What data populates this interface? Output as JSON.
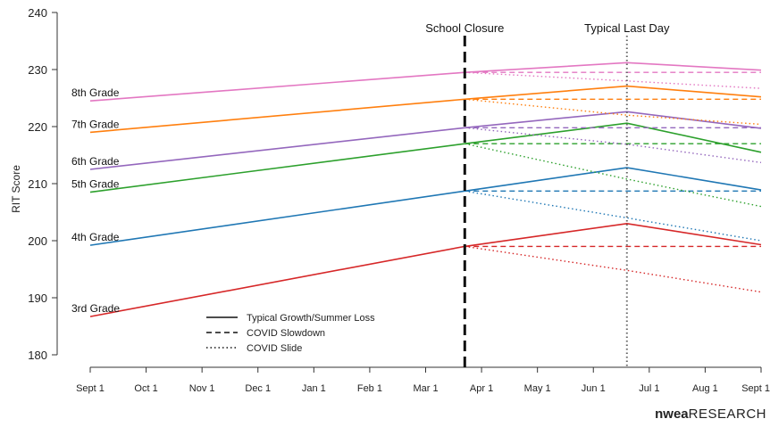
{
  "chart_data": {
    "type": "line",
    "ylabel": "RIT Score",
    "ylim": [
      180,
      240
    ],
    "yticks": [
      180,
      190,
      200,
      210,
      220,
      230,
      240
    ],
    "xticks": [
      "Sept 1",
      "Oct 1",
      "Nov 1",
      "Dec 1",
      "Jan 1",
      "Feb 1",
      "Mar 1",
      "Apr 1",
      "May 1",
      "Jun 1",
      "Jul 1",
      "Aug 1",
      "Sept 1"
    ],
    "events": [
      {
        "label": "School Closure",
        "month": 6.7,
        "style": "dashed",
        "color": "#111111"
      },
      {
        "label": "Typical Last Day",
        "month": 9.6,
        "style": "dotted",
        "color": "#666666"
      }
    ],
    "legend": [
      {
        "label": "Typical Growth/Summer Loss",
        "style": "solid"
      },
      {
        "label": "COVID Slowdown",
        "style": "dashed"
      },
      {
        "label": "COVID Slide",
        "style": "dotted"
      }
    ],
    "series": [
      {
        "name": "3rd Grade",
        "color": "#d62728",
        "start": 186.7,
        "closure": 199.0,
        "peak": 203.0,
        "end_typical": 199.3,
        "end_slowdown": 199.0,
        "slide_lastday": 194.8,
        "slide_end": 191.0
      },
      {
        "name": "4th Grade",
        "color": "#1f77b4",
        "start": 199.2,
        "closure": 208.7,
        "peak": 212.8,
        "end_typical": 208.9,
        "end_slowdown": 208.7,
        "slide_lastday": 204.0,
        "slide_end": 200.0
      },
      {
        "name": "5th Grade",
        "color": "#2ca02c",
        "start": 208.5,
        "closure": 217.0,
        "peak": 220.6,
        "end_typical": 215.5,
        "end_slowdown": 217.0,
        "slide_lastday": 210.8,
        "slide_end": 206.0
      },
      {
        "name": "6th Grade",
        "color": "#9467bd",
        "start": 212.5,
        "closure": 219.8,
        "peak": 222.6,
        "end_typical": 219.7,
        "end_slowdown": 219.8,
        "slide_lastday": 216.9,
        "slide_end": 213.7
      },
      {
        "name": "7th Grade",
        "color": "#ff7f0e",
        "start": 219.0,
        "closure": 224.8,
        "peak": 227.1,
        "end_typical": 225.2,
        "end_slowdown": 224.8,
        "slide_lastday": 222.0,
        "slide_end": 220.4
      },
      {
        "name": "8th Grade",
        "color": "#e377c2",
        "start": 224.5,
        "closure": 229.5,
        "peak": 231.2,
        "end_typical": 229.9,
        "end_slowdown": 229.5,
        "slide_lastday": 228.0,
        "slide_end": 226.7
      }
    ]
  },
  "brand": {
    "bold": "nwea",
    "rest": "RESEARCH"
  }
}
